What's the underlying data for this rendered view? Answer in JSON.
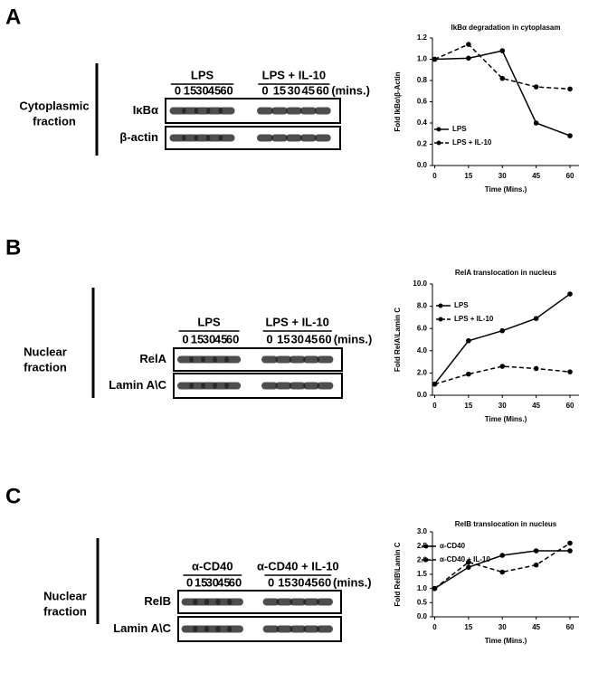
{
  "panels": [
    {
      "letter": "A",
      "fraction": [
        "Cytoplasmic",
        "fraction"
      ],
      "groups": [
        "LPS",
        "LPS + IL-10"
      ],
      "lanes": [
        "0",
        "15",
        "30",
        "45",
        "60"
      ],
      "unit": "(mins.)",
      "rows": [
        "IκBα",
        "β-actin"
      ]
    },
    {
      "letter": "B",
      "fraction": [
        "Nuclear",
        "fraction"
      ],
      "groups": [
        "LPS",
        "LPS + IL-10"
      ],
      "lanes": [
        "0",
        "15",
        "30",
        "45",
        "60"
      ],
      "unit": "(mins.)",
      "rows": [
        "RelA",
        "Lamin A\\C"
      ]
    },
    {
      "letter": "C",
      "fraction": [
        "Nuclear",
        "fraction"
      ],
      "groups": [
        "α-CD40",
        "α-CD40 + IL-10"
      ],
      "lanes": [
        "0",
        "15",
        "30",
        "45",
        "60"
      ],
      "unit": "(mins.)",
      "rows": [
        "RelB",
        "Lamin A\\C"
      ]
    }
  ],
  "chart_data": [
    {
      "type": "line",
      "title": "IkBα degradation in cytoplasam",
      "x_label": "Time (Mins.)",
      "y_label": "Fold IkBα\\β-Actin",
      "x": [
        0,
        15,
        30,
        45,
        60
      ],
      "xlim": [
        -1,
        64
      ],
      "xticks": [
        0,
        15,
        30,
        45,
        60
      ],
      "ylim": [
        0,
        1.2
      ],
      "yticks": [
        {
          "value": 0,
          "label": "0.0"
        },
        {
          "value": 0.2,
          "label": "0.2"
        },
        {
          "value": 0.4,
          "label": "0.4"
        },
        {
          "value": 0.6,
          "label": "0.6"
        },
        {
          "value": 0.8,
          "label": "0.8"
        },
        {
          "value": 1.0,
          "label": "1.0"
        },
        {
          "value": 1.2,
          "label": "1.2"
        }
      ],
      "legend": "center-left",
      "series": [
        {
          "name": "LPS",
          "color": "#000000",
          "dashed": false,
          "values": [
            1.0,
            1.01,
            1.08,
            0.4,
            0.28
          ]
        },
        {
          "name": "LPS + IL-10",
          "color": "#000000",
          "dashed": true,
          "values": [
            1.0,
            1.14,
            0.82,
            0.74,
            0.72
          ]
        }
      ]
    },
    {
      "type": "line",
      "title": "RelA translocation in nucleus",
      "x_label": "Time (Mins.)",
      "y_label": "Fold RelA\\Lamin C",
      "x": [
        0,
        15,
        30,
        45,
        60
      ],
      "xlim": [
        -1,
        64
      ],
      "xticks": [
        0,
        15,
        30,
        45,
        60
      ],
      "ylim": [
        0,
        10
      ],
      "yticks": [
        {
          "value": 0,
          "label": "0.0"
        },
        {
          "value": 2,
          "label": "2.0"
        },
        {
          "value": 4,
          "label": "4.0"
        },
        {
          "value": 6,
          "label": "6.0"
        },
        {
          "value": 8,
          "label": "8.0"
        },
        {
          "value": 10,
          "label": "10.0"
        }
      ],
      "legend": "upper-left",
      "series": [
        {
          "name": "LPS",
          "color": "#000000",
          "dashed": false,
          "values": [
            1.0,
            4.9,
            5.8,
            6.9,
            9.1
          ]
        },
        {
          "name": "LPS + IL-10",
          "color": "#000000",
          "dashed": true,
          "values": [
            1.0,
            1.9,
            2.6,
            2.4,
            2.1
          ]
        }
      ]
    },
    {
      "type": "line",
      "title": "RelB translocation in nucleus",
      "x_label": "Time (Mins.)",
      "y_label": "Fold RelB\\Lamin C",
      "x": [
        0,
        15,
        30,
        45,
        60
      ],
      "xlim": [
        -1,
        64
      ],
      "xticks": [
        0,
        15,
        30,
        45,
        60
      ],
      "ylim": [
        0,
        3.0
      ],
      "yticks": [
        {
          "value": 0,
          "label": "0.0"
        },
        {
          "value": 0.5,
          "label": "0.5"
        },
        {
          "value": 1.0,
          "label": "1.0"
        },
        {
          "value": 1.5,
          "label": "1.5"
        },
        {
          "value": 2.0,
          "label": "2.0"
        },
        {
          "value": 2.5,
          "label": "2.5"
        },
        {
          "value": 3.0,
          "label": "3.0"
        }
      ],
      "legend": "upper-left",
      "series": [
        {
          "name": "α-CD40",
          "color": "#000000",
          "dashed": false,
          "values": [
            1.0,
            1.75,
            2.17,
            2.33,
            2.33
          ]
        },
        {
          "name": "α-CD40 + IL-10",
          "color": "#000000",
          "dashed": true,
          "values": [
            1.0,
            1.93,
            1.58,
            1.83,
            2.6
          ]
        }
      ]
    }
  ]
}
